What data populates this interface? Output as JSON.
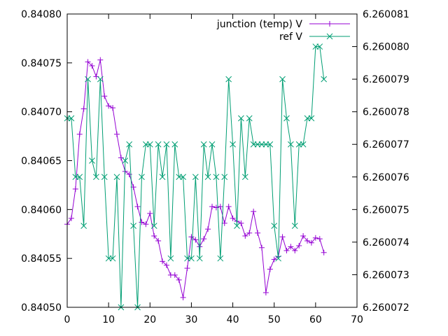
{
  "chart_data": {
    "type": "line",
    "title": "",
    "xlabel": "",
    "ylabel": "",
    "y2label": "",
    "grid": false,
    "legend_position": "top-right",
    "xlim": [
      0,
      70
    ],
    "ylim": [
      0.8405,
      0.8408
    ],
    "y2lim": [
      6.260072,
      6.260081
    ],
    "x_ticks": [
      "0",
      "10",
      "20",
      "30",
      "40",
      "50",
      "60",
      "70"
    ],
    "y_ticks": [
      "0.84050",
      "0.84055",
      "0.84060",
      "0.84065",
      "0.84070",
      "0.84075",
      "0.84080"
    ],
    "y2_ticks": [
      "6.260072",
      "6.260073",
      "6.260074",
      "6.260075",
      "6.260076",
      "6.260077",
      "6.260078",
      "6.260079",
      "6.260080",
      "6.260081"
    ],
    "series": [
      {
        "name": "junction (temp) V",
        "axis": "y1",
        "color": "#9400d3",
        "marker": "plus",
        "x": [
          0,
          1,
          2,
          3,
          4,
          5,
          6,
          7,
          8,
          9,
          10,
          11,
          12,
          13,
          14,
          15,
          16,
          17,
          18,
          19,
          20,
          21,
          22,
          23,
          24,
          25,
          26,
          27,
          28,
          29,
          30,
          31,
          32,
          33,
          34,
          35,
          36,
          37,
          38,
          39,
          40,
          41,
          42,
          43,
          44,
          45,
          46,
          47,
          48,
          49,
          50,
          51,
          52,
          53,
          54,
          55,
          56,
          57,
          58,
          59,
          60,
          61,
          62
        ],
        "y": [
          0.840585,
          0.840591,
          0.840621,
          0.840677,
          0.840703,
          0.840751,
          0.840747,
          0.840736,
          0.840753,
          0.840716,
          0.840706,
          0.840704,
          0.840677,
          0.840653,
          0.840639,
          0.840636,
          0.840623,
          0.840603,
          0.840587,
          0.840585,
          0.840596,
          0.840573,
          0.840568,
          0.840547,
          0.840543,
          0.840533,
          0.840533,
          0.840528,
          0.84051,
          0.84054,
          0.840572,
          0.840569,
          0.840562,
          0.84057,
          0.84058,
          0.840603,
          0.840602,
          0.840603,
          0.840586,
          0.840603,
          0.840591,
          0.840588,
          0.840586,
          0.840573,
          0.840576,
          0.840598,
          0.840576,
          0.840561,
          0.840515,
          0.840539,
          0.840549,
          0.840552,
          0.840572,
          0.840558,
          0.840562,
          0.840558,
          0.840563,
          0.840573,
          0.840568,
          0.840566,
          0.840571,
          0.84057,
          0.840556
        ]
      },
      {
        "name": "ref V",
        "axis": "y2",
        "color": "#009e73",
        "marker": "cross",
        "x": [
          0,
          1,
          2,
          3,
          4,
          5,
          6,
          7,
          8,
          9,
          10,
          11,
          12,
          13,
          14,
          15,
          16,
          17,
          18,
          19,
          20,
          21,
          22,
          23,
          24,
          25,
          26,
          27,
          28,
          29,
          30,
          31,
          32,
          33,
          34,
          35,
          36,
          37,
          38,
          39,
          40,
          41,
          42,
          43,
          44,
          45,
          46,
          47,
          48,
          49,
          50,
          51,
          52,
          53,
          54,
          55,
          56,
          57,
          58,
          59,
          60,
          61,
          62
        ],
        "y": [
          6.2600778,
          6.2600778,
          6.260076,
          6.260076,
          6.2600745,
          6.260079,
          6.2600765,
          6.260076,
          6.260079,
          6.260076,
          6.2600735,
          6.2600735,
          6.260076,
          6.260072,
          6.2600765,
          6.260077,
          6.2600745,
          6.260072,
          6.260076,
          6.260077,
          6.260077,
          6.2600745,
          6.260077,
          6.260076,
          6.260077,
          6.2600735,
          6.260077,
          6.260076,
          6.260076,
          6.2600735,
          6.2600735,
          6.260076,
          6.2600735,
          6.260077,
          6.260076,
          6.260077,
          6.260076,
          6.2600735,
          6.260076,
          6.260079,
          6.260077,
          6.2600745,
          6.2600778,
          6.260076,
          6.2600778,
          6.260077,
          6.260077,
          6.260077,
          6.260077,
          6.260077,
          6.2600745,
          6.2600735,
          6.260079,
          6.2600778,
          6.260077,
          6.2600745,
          6.260077,
          6.260077,
          6.2600778,
          6.2600778,
          6.26008,
          6.26008,
          6.260079
        ]
      }
    ]
  }
}
